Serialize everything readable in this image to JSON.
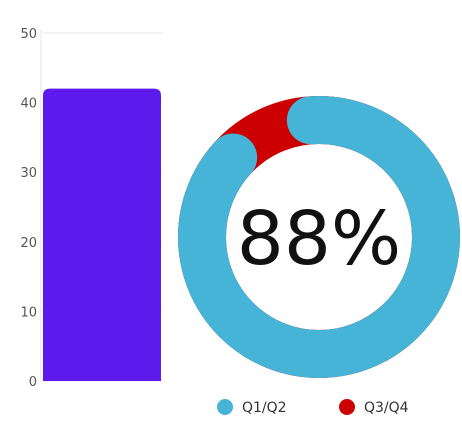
{
  "chart_data": [
    {
      "type": "bar",
      "categories": [
        ""
      ],
      "values": [
        42
      ],
      "ylim": [
        0,
        50
      ],
      "yticks": [
        0,
        10,
        20,
        30,
        40,
        50
      ],
      "bar_color": "#5c1aed",
      "grid": true
    },
    {
      "type": "pie",
      "variant": "donut",
      "center_label": "88%",
      "slices": [
        {
          "label": "Q1/Q2",
          "value": 88,
          "color": "#45b4d6"
        },
        {
          "label": "Q3/Q4",
          "value": 12,
          "color": "#cc0000"
        }
      ],
      "legend_position": "bottom"
    }
  ]
}
